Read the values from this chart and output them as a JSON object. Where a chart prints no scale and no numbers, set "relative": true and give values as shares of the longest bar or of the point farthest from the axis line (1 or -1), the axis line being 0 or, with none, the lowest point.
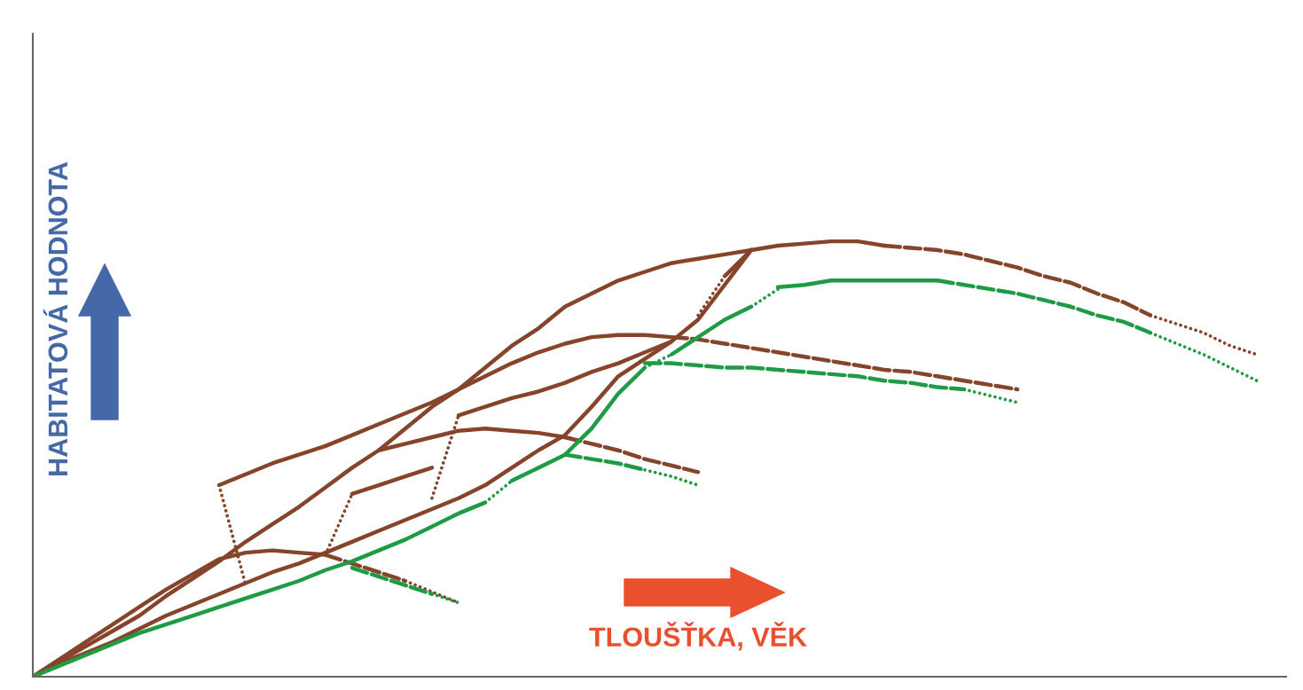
{
  "chart_data": {
    "type": "line",
    "relative": true,
    "xlabel": "TLOUŠŤKA, VĚK",
    "ylabel": "HABITATOVÁ HODNOTA",
    "categories": [
      null,
      null,
      null,
      null,
      null,
      null,
      null,
      null,
      null,
      null,
      null,
      null,
      null,
      null,
      null,
      null,
      null,
      null,
      null,
      null,
      null,
      null,
      null,
      null,
      null,
      null,
      null,
      null,
      null,
      null,
      null,
      null,
      null,
      null,
      null,
      null,
      null,
      null,
      null,
      null,
      null,
      null,
      null,
      null,
      null,
      null,
      null,
      null
    ],
    "series": [
      {
        "color": "#86442a",
        "line_style": "solid",
        "values": [
          0,
          0.035,
          0.07,
          0.105,
          0.14,
          0.185,
          0.225,
          0.265,
          0.31,
          0.35,
          0.39,
          0.435,
          0.48,
          0.52,
          0.57,
          0.62,
          0.66,
          0.71,
          0.76,
          0.8,
          0.85,
          0.88,
          0.91,
          0.93,
          0.95,
          0.96,
          0.97,
          0.98,
          0.99,
          0.995,
          1.0,
          1.0,
          0.99,
          null,
          null,
          null,
          null,
          null,
          null,
          null,
          null,
          null,
          null,
          null,
          null,
          null,
          null,
          null
        ]
      },
      {
        "color": "#86442a",
        "line_style": "dashed",
        "values": [
          null,
          null,
          null,
          null,
          null,
          null,
          null,
          null,
          null,
          null,
          null,
          null,
          null,
          null,
          null,
          null,
          null,
          null,
          null,
          null,
          null,
          null,
          null,
          null,
          null,
          null,
          null,
          null,
          null,
          null,
          null,
          null,
          0.99,
          0.985,
          0.98,
          0.97,
          0.955,
          0.94,
          0.92,
          0.905,
          0.88,
          0.86,
          0.83,
          null,
          null,
          null,
          null,
          null
        ]
      },
      {
        "color": "#86442a",
        "line_style": "dotted",
        "values": [
          null,
          null,
          null,
          null,
          null,
          null,
          null,
          null,
          null,
          null,
          null,
          null,
          null,
          null,
          null,
          null,
          null,
          null,
          null,
          null,
          null,
          null,
          null,
          null,
          null,
          null,
          null,
          null,
          null,
          null,
          null,
          null,
          null,
          null,
          null,
          null,
          null,
          null,
          null,
          null,
          null,
          null,
          0.83,
          0.81,
          0.79,
          0.76,
          0.74,
          null
        ]
      },
      {
        "color": "#86442a",
        "line_style": "solid",
        "values": [
          0,
          0.04,
          0.08,
          0.12,
          0.16,
          0.2,
          0.235,
          0.27,
          0.285,
          0.29,
          0.285,
          0.28,
          null,
          null,
          null,
          null,
          null,
          null,
          null,
          null,
          null,
          null,
          null,
          null,
          null,
          null,
          null,
          null,
          null,
          null,
          null,
          null,
          null,
          null,
          null,
          null,
          null,
          null,
          null,
          null,
          null,
          null,
          null,
          null,
          null,
          null,
          null,
          null
        ]
      },
      {
        "color": "#86442a",
        "line_style": "dashed",
        "values": [
          null,
          null,
          null,
          null,
          null,
          null,
          null,
          null,
          null,
          null,
          null,
          0.28,
          0.26,
          0.24,
          0.22,
          null,
          null,
          null,
          null,
          null,
          null,
          null,
          null,
          null,
          null,
          null,
          null,
          null,
          null,
          null,
          null,
          null,
          null,
          null,
          null,
          null,
          null,
          null,
          null,
          null,
          null,
          null,
          null,
          null,
          null,
          null,
          null,
          null
        ]
      },
      {
        "color": "#86442a",
        "line_style": "dotted",
        "values": [
          null,
          null,
          null,
          null,
          null,
          null,
          null,
          null,
          null,
          null,
          null,
          null,
          null,
          null,
          0.22,
          0.195,
          0.17,
          null,
          null,
          null,
          null,
          null,
          null,
          null,
          null,
          null,
          null,
          null,
          null,
          null,
          null,
          null,
          null,
          null,
          null,
          null,
          null,
          null,
          null,
          null,
          null,
          null,
          null,
          null,
          null,
          null,
          null,
          null
        ]
      },
      {
        "color": "#86442a",
        "line_style": "dotted",
        "values": [
          null,
          null,
          null,
          null,
          null,
          null,
          null,
          0.44,
          0.21,
          null,
          null,
          null,
          null,
          null,
          null,
          null,
          null,
          null,
          null,
          null,
          null,
          null,
          null,
          null,
          null,
          null,
          null,
          null,
          null,
          null,
          null,
          null,
          null,
          null,
          null,
          null,
          null,
          null,
          null,
          null,
          null,
          null,
          null,
          null,
          null,
          null,
          null,
          null
        ]
      },
      {
        "color": "#86442a",
        "line_style": "solid",
        "values": [
          null,
          null,
          null,
          null,
          null,
          null,
          null,
          0.44,
          0.465,
          0.49,
          0.51,
          0.53,
          0.555,
          0.58,
          0.605,
          0.63,
          0.66,
          0.69,
          0.72,
          0.745,
          0.765,
          0.78,
          0.785,
          0.785,
          0.78,
          null,
          null,
          null,
          null,
          null,
          null,
          null,
          null,
          null,
          null,
          null,
          null,
          null,
          null,
          null,
          null,
          null,
          null,
          null,
          null,
          null,
          null,
          null
        ]
      },
      {
        "color": "#86442a",
        "line_style": "dashed",
        "values": [
          null,
          null,
          null,
          null,
          null,
          null,
          null,
          null,
          null,
          null,
          null,
          null,
          null,
          null,
          null,
          null,
          null,
          null,
          null,
          null,
          null,
          null,
          null,
          null,
          0.78,
          0.775,
          0.765,
          0.755,
          0.745,
          0.735,
          0.725,
          0.715,
          0.705,
          0.7,
          0.69,
          0.68,
          0.67,
          0.66,
          null,
          null,
          null,
          null,
          null,
          null,
          null,
          null,
          null,
          null
        ]
      },
      {
        "color": "#86442a",
        "line_style": "solid",
        "values": [
          0,
          0.03,
          0.055,
          0.08,
          0.11,
          0.14,
          0.165,
          0.19,
          0.215,
          0.24,
          0.26,
          0.285,
          0.31,
          0.335,
          0.36,
          0.385,
          0.41,
          0.44,
          0.48,
          0.52,
          0.555,
          0.62,
          0.69,
          0.73,
          0.77,
          0.82,
          0.9,
          0.98,
          null,
          null,
          null,
          null,
          null,
          null,
          null,
          null,
          null,
          null,
          null,
          null,
          null,
          null,
          null,
          null,
          null,
          null,
          null,
          null
        ]
      },
      {
        "color": "#86442a",
        "line_style": "dotted",
        "values": [
          null,
          null,
          null,
          null,
          null,
          null,
          null,
          null,
          null,
          null,
          null,
          0.28,
          0.42,
          null,
          null,
          null,
          null,
          null,
          null,
          null,
          null,
          null,
          null,
          null,
          null,
          null,
          null,
          null,
          null,
          null,
          null,
          null,
          null,
          null,
          null,
          null,
          null,
          null,
          null,
          null,
          null,
          null,
          null,
          null,
          null,
          null,
          null,
          null
        ]
      },
      {
        "color": "#86442a",
        "line_style": "solid",
        "values": [
          null,
          null,
          null,
          null,
          null,
          null,
          null,
          null,
          null,
          null,
          null,
          null,
          0.42,
          0.44,
          0.46,
          0.48,
          null,
          null,
          null,
          null,
          null,
          null,
          null,
          null,
          null,
          null,
          null,
          null,
          null,
          null,
          null,
          null,
          null,
          null,
          null,
          null,
          null,
          null,
          null,
          null,
          null,
          null,
          null,
          null,
          null,
          null,
          null,
          null
        ]
      },
      {
        "color": "#86442a",
        "line_style": "dotted",
        "values": [
          null,
          null,
          null,
          null,
          null,
          null,
          null,
          null,
          null,
          null,
          null,
          null,
          null,
          null,
          null,
          0.41,
          0.6,
          null,
          null,
          null,
          null,
          null,
          null,
          null,
          null,
          null,
          null,
          null,
          null,
          null,
          null,
          null,
          null,
          null,
          null,
          null,
          null,
          null,
          null,
          null,
          null,
          null,
          null,
          null,
          null,
          null,
          null,
          null
        ]
      },
      {
        "color": "#86442a",
        "line_style": "solid",
        "values": [
          null,
          null,
          null,
          null,
          null,
          null,
          null,
          null,
          null,
          null,
          null,
          null,
          null,
          null,
          null,
          null,
          0.6,
          0.62,
          0.64,
          0.655,
          0.675,
          0.7,
          0.72,
          0.745,
          0.77,
          null,
          null,
          null,
          null,
          null,
          null,
          null,
          null,
          null,
          null,
          null,
          null,
          null,
          null,
          null,
          null,
          null,
          null,
          null,
          null,
          null,
          null,
          null
        ]
      },
      {
        "color": "#86442a",
        "line_style": "dotted",
        "values": [
          null,
          null,
          null,
          null,
          null,
          null,
          null,
          null,
          null,
          null,
          null,
          null,
          null,
          null,
          null,
          null,
          null,
          null,
          null,
          null,
          null,
          null,
          null,
          null,
          null,
          0.83,
          0.92,
          null,
          null,
          null,
          null,
          null,
          null,
          null,
          null,
          null,
          null,
          null,
          null,
          null,
          null,
          null,
          null,
          null,
          null,
          null,
          null,
          null
        ]
      },
      {
        "color": "#86442a",
        "line_style": "solid",
        "values": [
          null,
          null,
          null,
          null,
          null,
          null,
          null,
          null,
          null,
          null,
          null,
          null,
          null,
          null,
          null,
          null,
          null,
          null,
          null,
          null,
          null,
          null,
          null,
          null,
          null,
          null,
          0.92,
          0.98,
          null,
          null,
          null,
          null,
          null,
          null,
          null,
          null,
          null,
          null,
          null,
          null,
          null,
          null,
          null,
          null,
          null,
          null,
          null,
          null
        ]
      },
      {
        "color": "#86442a",
        "line_style": "solid",
        "values": [
          null,
          null,
          null,
          null,
          null,
          null,
          null,
          null,
          null,
          null,
          null,
          null,
          null,
          0.52,
          0.535,
          0.55,
          0.565,
          0.57,
          0.565,
          0.56,
          0.55,
          null,
          null,
          null,
          null,
          null,
          null,
          null,
          null,
          null,
          null,
          null,
          null,
          null,
          null,
          null,
          null,
          null,
          null,
          null,
          null,
          null,
          null,
          null,
          null,
          null,
          null,
          null
        ]
      },
      {
        "color": "#86442a",
        "line_style": "dashed",
        "values": [
          null,
          null,
          null,
          null,
          null,
          null,
          null,
          null,
          null,
          null,
          null,
          null,
          null,
          null,
          null,
          null,
          null,
          null,
          null,
          null,
          0.55,
          0.535,
          0.52,
          0.5,
          0.485,
          0.47,
          null,
          null,
          null,
          null,
          null,
          null,
          null,
          null,
          null,
          null,
          null,
          null,
          null,
          null,
          null,
          null,
          null,
          null,
          null,
          null,
          null,
          null
        ]
      },
      {
        "color": "#1f9a45",
        "line_style": "solid",
        "values": [
          0,
          0.025,
          0.05,
          0.075,
          0.1,
          0.12,
          0.14,
          0.16,
          0.18,
          0.2,
          0.22,
          0.245,
          0.265,
          0.29,
          0.315,
          0.345,
          0.375,
          0.4,
          null,
          null,
          null,
          null,
          null,
          null,
          null,
          null,
          null,
          null,
          null,
          null,
          null,
          null,
          null,
          null,
          null,
          null,
          null,
          null,
          null,
          null,
          null,
          null,
          null,
          null,
          null,
          null,
          null,
          null
        ]
      },
      {
        "color": "#1f9a45",
        "line_style": "dotted",
        "values": [
          null,
          null,
          null,
          null,
          null,
          null,
          null,
          null,
          null,
          null,
          null,
          null,
          null,
          null,
          null,
          null,
          null,
          0.4,
          0.45,
          null,
          null,
          null,
          null,
          null,
          null,
          null,
          null,
          null,
          null,
          null,
          null,
          null,
          null,
          null,
          null,
          null,
          null,
          null,
          null,
          null,
          null,
          null,
          null,
          null,
          null,
          null,
          null,
          null
        ]
      },
      {
        "color": "#1f9a45",
        "line_style": "solid",
        "values": [
          null,
          null,
          null,
          null,
          null,
          null,
          null,
          null,
          null,
          null,
          null,
          null,
          null,
          null,
          null,
          null,
          null,
          null,
          0.45,
          0.48,
          0.51,
          0.57,
          0.65,
          0.71,
          null,
          null,
          null,
          null,
          null,
          null,
          null,
          null,
          null,
          null,
          null,
          null,
          null,
          null,
          null,
          null,
          null,
          null,
          null,
          null,
          null,
          null,
          null,
          null
        ]
      },
      {
        "color": "#1f9a45",
        "line_style": "dotted",
        "values": [
          null,
          null,
          null,
          null,
          null,
          null,
          null,
          null,
          null,
          null,
          null,
          null,
          null,
          null,
          null,
          null,
          null,
          null,
          null,
          null,
          null,
          null,
          null,
          0.71,
          0.74,
          null,
          null,
          null,
          null,
          null,
          null,
          null,
          null,
          null,
          null,
          null,
          null,
          null,
          null,
          null,
          null,
          null,
          null,
          null,
          null,
          null,
          null,
          null
        ]
      },
      {
        "color": "#1f9a45",
        "line_style": "solid",
        "values": [
          null,
          null,
          null,
          null,
          null,
          null,
          null,
          null,
          null,
          null,
          null,
          null,
          null,
          null,
          null,
          null,
          null,
          null,
          null,
          null,
          null,
          null,
          null,
          null,
          0.74,
          0.78,
          0.82,
          0.85,
          null,
          null,
          null,
          null,
          null,
          null,
          null,
          null,
          null,
          null,
          null,
          null,
          null,
          null,
          null,
          null,
          null,
          null,
          null,
          null
        ]
      },
      {
        "color": "#1f9a45",
        "line_style": "dotted",
        "values": [
          null,
          null,
          null,
          null,
          null,
          null,
          null,
          null,
          null,
          null,
          null,
          null,
          null,
          null,
          null,
          null,
          null,
          null,
          null,
          null,
          null,
          null,
          null,
          null,
          null,
          null,
          null,
          0.85,
          0.89,
          null,
          null,
          null,
          null,
          null,
          null,
          null,
          null,
          null,
          null,
          null,
          null,
          null,
          null,
          null,
          null,
          null,
          null,
          null
        ]
      },
      {
        "color": "#1f9a45",
        "line_style": "solid",
        "values": [
          null,
          null,
          null,
          null,
          null,
          null,
          null,
          null,
          null,
          null,
          null,
          null,
          null,
          null,
          null,
          null,
          null,
          null,
          null,
          null,
          null,
          null,
          null,
          null,
          null,
          null,
          null,
          null,
          0.895,
          0.9,
          0.91,
          0.91,
          0.91,
          0.91,
          0.91,
          null,
          null,
          null,
          null,
          null,
          null,
          null,
          null,
          null,
          null,
          null,
          null,
          null
        ]
      },
      {
        "color": "#1f9a45",
        "line_style": "dashed",
        "values": [
          null,
          null,
          null,
          null,
          null,
          null,
          null,
          null,
          null,
          null,
          null,
          null,
          null,
          null,
          null,
          null,
          null,
          null,
          null,
          null,
          null,
          null,
          null,
          null,
          null,
          null,
          null,
          null,
          null,
          null,
          null,
          null,
          null,
          null,
          0.91,
          0.9,
          0.89,
          0.88,
          0.865,
          0.85,
          0.83,
          0.815,
          0.79,
          null,
          null,
          null,
          null,
          null
        ]
      },
      {
        "color": "#1f9a45",
        "line_style": "dotted",
        "values": [
          null,
          null,
          null,
          null,
          null,
          null,
          null,
          null,
          null,
          null,
          null,
          null,
          null,
          null,
          null,
          null,
          null,
          null,
          null,
          null,
          null,
          null,
          null,
          null,
          null,
          null,
          null,
          null,
          null,
          null,
          null,
          null,
          null,
          null,
          null,
          null,
          null,
          null,
          null,
          null,
          null,
          null,
          0.79,
          0.765,
          0.74,
          0.71,
          0.68,
          null
        ]
      },
      {
        "color": "#1f9a45",
        "line_style": "dashed",
        "values": [
          null,
          null,
          null,
          null,
          null,
          null,
          null,
          null,
          null,
          null,
          null,
          null,
          0.25,
          0.23,
          0.21,
          0.19,
          null,
          null,
          null,
          null,
          null,
          null,
          null,
          null,
          null,
          null,
          null,
          null,
          null,
          null,
          null,
          null,
          null,
          null,
          null,
          null,
          null,
          null,
          null,
          null,
          null,
          null,
          null,
          null,
          null,
          null,
          null,
          null
        ]
      },
      {
        "color": "#1f9a45",
        "line_style": "dotted",
        "values": [
          null,
          null,
          null,
          null,
          null,
          null,
          null,
          null,
          null,
          null,
          null,
          null,
          null,
          null,
          null,
          0.19,
          0.17,
          null,
          null,
          null,
          null,
          null,
          null,
          null,
          null,
          null,
          null,
          null,
          null,
          null,
          null,
          null,
          null,
          null,
          null,
          null,
          null,
          null,
          null,
          null,
          null,
          null,
          null,
          null,
          null,
          null,
          null,
          null
        ]
      },
      {
        "color": "#1f9a45",
        "line_style": "dashed",
        "values": [
          null,
          null,
          null,
          null,
          null,
          null,
          null,
          null,
          null,
          null,
          null,
          null,
          null,
          null,
          null,
          null,
          null,
          null,
          null,
          null,
          0.51,
          0.5,
          0.49,
          0.475,
          null,
          null,
          null,
          null,
          null,
          null,
          null,
          null,
          null,
          null,
          null,
          null,
          null,
          null,
          null,
          null,
          null,
          null,
          null,
          null,
          null,
          null,
          null,
          null
        ]
      },
      {
        "color": "#1f9a45",
        "line_style": "dotted",
        "values": [
          null,
          null,
          null,
          null,
          null,
          null,
          null,
          null,
          null,
          null,
          null,
          null,
          null,
          null,
          null,
          null,
          null,
          null,
          null,
          null,
          null,
          null,
          null,
          0.475,
          0.46,
          0.44,
          null,
          null,
          null,
          null,
          null,
          null,
          null,
          null,
          null,
          null,
          null,
          null,
          null,
          null,
          null,
          null,
          null,
          null,
          null,
          null,
          null,
          null
        ]
      },
      {
        "color": "#1f9a45",
        "line_style": "dashed",
        "values": [
          null,
          null,
          null,
          null,
          null,
          null,
          null,
          null,
          null,
          null,
          null,
          null,
          null,
          null,
          null,
          null,
          null,
          null,
          null,
          null,
          null,
          null,
          null,
          0.72,
          0.72,
          0.715,
          0.71,
          0.71,
          0.705,
          0.7,
          0.695,
          0.69,
          0.68,
          0.675,
          0.665,
          0.66,
          null,
          null,
          null,
          null,
          null,
          null,
          null,
          null,
          null,
          null,
          null,
          null
        ]
      },
      {
        "color": "#1f9a45",
        "line_style": "dotted",
        "values": [
          null,
          null,
          null,
          null,
          null,
          null,
          null,
          null,
          null,
          null,
          null,
          null,
          null,
          null,
          null,
          null,
          null,
          null,
          null,
          null,
          null,
          null,
          null,
          null,
          null,
          null,
          null,
          null,
          null,
          null,
          null,
          null,
          null,
          null,
          null,
          0.66,
          0.645,
          0.63,
          null,
          null,
          null,
          null,
          null,
          null,
          null,
          null,
          null,
          null
        ]
      }
    ]
  }
}
